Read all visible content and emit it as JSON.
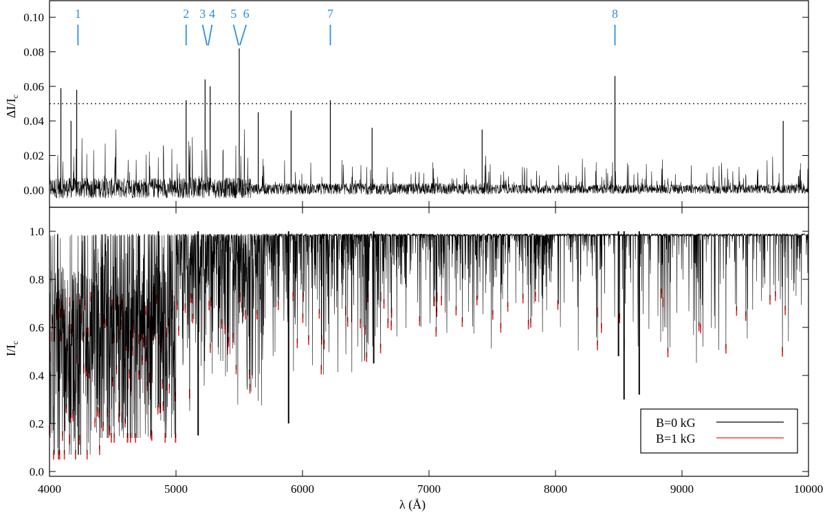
{
  "chart_data": [
    {
      "panel": "top",
      "type": "line",
      "ylabel": "ΔI/I",
      "ylabel_sub": "c",
      "xlim": [
        4000,
        10000
      ],
      "ylim": [
        -0.01,
        0.11
      ],
      "yticks": [
        0.0,
        0.02,
        0.04,
        0.06,
        0.08,
        0.1
      ],
      "ytick_labels": [
        "0.00",
        "0.02",
        "0.04",
        "0.06",
        "0.08",
        "0.10"
      ],
      "threshold": 0.05,
      "threshold_style": "dotted",
      "peaks": [
        {
          "x": 4215,
          "y": 0.058
        },
        {
          "x": 5080,
          "y": 0.052
        },
        {
          "x": 5230,
          "y": 0.064
        },
        {
          "x": 5270,
          "y": 0.06
        },
        {
          "x": 5500,
          "y": 0.082
        },
        {
          "x": 5650,
          "y": 0.045
        },
        {
          "x": 5910,
          "y": 0.046
        },
        {
          "x": 6220,
          "y": 0.052
        },
        {
          "x": 8470,
          "y": 0.066
        },
        {
          "x": 4090,
          "y": 0.059
        },
        {
          "x": 4170,
          "y": 0.04
        },
        {
          "x": 9800,
          "y": 0.04
        },
        {
          "x": 6550,
          "y": 0.036
        },
        {
          "x": 7420,
          "y": 0.035
        }
      ],
      "markers": [
        {
          "label": "1",
          "x": 4225,
          "lower_x": 4225
        },
        {
          "label": "2",
          "x": 5080,
          "lower_x": 5080
        },
        {
          "label": "3",
          "x": 5210,
          "lower_x": 5245
        },
        {
          "label": "4",
          "x": 5285,
          "lower_x": 5255
        },
        {
          "label": "5",
          "x": 5455,
          "lower_x": 5495
        },
        {
          "label": "6",
          "x": 5555,
          "lower_x": 5505
        },
        {
          "label": "7",
          "x": 6220,
          "lower_x": 6220
        },
        {
          "label": "8",
          "x": 8470,
          "lower_x": 8470
        }
      ],
      "marker_color": "#2a8ee0"
    },
    {
      "panel": "bottom",
      "type": "line",
      "xlabel": "λ (Å)",
      "ylabel": "I/I",
      "ylabel_sub": "c",
      "xlim": [
        4000,
        10000
      ],
      "ylim": [
        -0.02,
        1.1
      ],
      "yticks": [
        0.0,
        0.2,
        0.4,
        0.6,
        0.8,
        1.0
      ],
      "ytick_labels": [
        "0.0",
        "0.2",
        "0.4",
        "0.6",
        "0.8",
        "1.0"
      ],
      "xticks": [
        4000,
        5000,
        6000,
        7000,
        8000,
        9000,
        10000
      ],
      "xtick_labels": [
        "4000",
        "5000",
        "6000",
        "7000",
        "8000",
        "9000",
        "10000"
      ],
      "continuum": 1.0,
      "series": [
        {
          "name": "B=0 kG",
          "color": "#000000"
        },
        {
          "name": "B=1 kG",
          "color": "#e8211f"
        }
      ],
      "strong_lines": [
        {
          "x": 4861,
          "depth": 0.72
        },
        {
          "x": 5175,
          "depth": 0.85
        },
        {
          "x": 5890,
          "depth": 0.8
        },
        {
          "x": 6563,
          "depth": 0.55
        },
        {
          "x": 8542,
          "depth": 0.7
        },
        {
          "x": 8662,
          "depth": 0.68
        },
        {
          "x": 8498,
          "depth": 0.52
        }
      ],
      "legend_position": "bottom-right"
    }
  ]
}
